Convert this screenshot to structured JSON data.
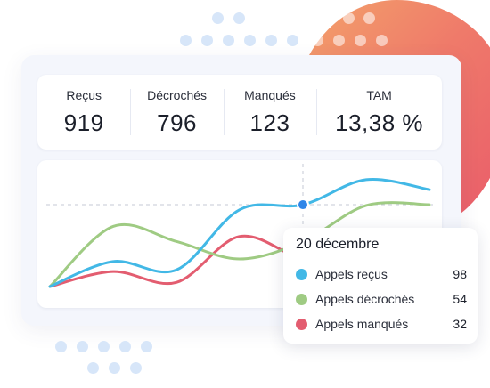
{
  "colors": {
    "dots": "#d7e6f9",
    "received": "#42b8e6",
    "answered": "#9fcb83",
    "missed": "#e35d70",
    "marker": "#2f86e8",
    "guide": "#c5cad6"
  },
  "stats": [
    {
      "label": "Reçus",
      "value": "919"
    },
    {
      "label": "Décrochés",
      "value": "796"
    },
    {
      "label": "Manqués",
      "value": "123"
    },
    {
      "label": "TAM",
      "value": "13,38 %"
    }
  ],
  "chart_data": {
    "type": "line",
    "title": "",
    "xlabel": "",
    "ylabel": "",
    "grid": false,
    "series": [
      {
        "name": "Appels reçus",
        "values": [
          0,
          30,
          20,
          92,
          98,
          128,
          116
        ]
      },
      {
        "name": "Appels décrochés",
        "values": [
          0,
          72,
          54,
          33,
          54,
          97,
          98
        ]
      },
      {
        "name": "Appels manqués",
        "values": [
          0,
          18,
          5,
          60,
          32,
          15,
          10
        ]
      }
    ],
    "highlight_index": 4
  },
  "tooltip": {
    "date": "20 décembre",
    "rows": [
      {
        "label": "Appels reçus",
        "value": "98",
        "color": "#42b8e6"
      },
      {
        "label": "Appels décrochés",
        "value": "54",
        "color": "#9fcb83"
      },
      {
        "label": "Appels manqués",
        "value": "32",
        "color": "#e35d70"
      }
    ]
  }
}
